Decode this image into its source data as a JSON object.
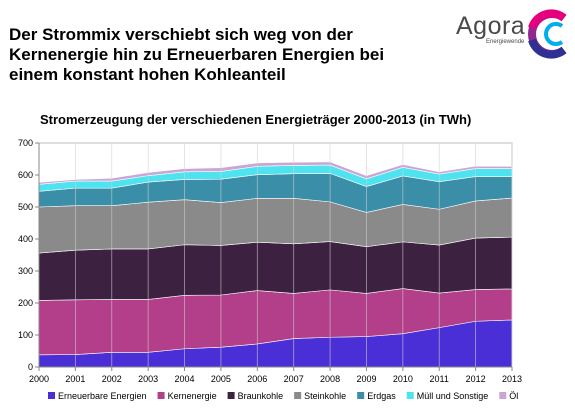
{
  "headline": {
    "line1": "Der Strommix verschiebt sich weg von der",
    "line2": "Kernenergie hin zu Erneuerbaren Energien bei",
    "line3": "einem konstant hohen Kohleanteil"
  },
  "logo": {
    "name": "Agora",
    "subtitle": "Energiewende",
    "colors": [
      "#2e3192",
      "#92278f",
      "#e6007e",
      "#00aeef"
    ]
  },
  "chart_data": {
    "type": "area",
    "stacked": true,
    "title": "Stromerzeugung der verschiedenen Energieträger 2000-2013 (in TWh)",
    "xlabel": "",
    "ylabel": "",
    "x": [
      2000,
      2001,
      2002,
      2003,
      2004,
      2005,
      2006,
      2007,
      2008,
      2009,
      2010,
      2011,
      2012,
      2013
    ],
    "x_ticks": [
      "2000",
      "2001",
      "2002",
      "2003",
      "2004",
      "2005",
      "2006",
      "2007",
      "2008",
      "2009",
      "2010",
      "2011",
      "2012",
      "2013"
    ],
    "ylim": [
      0,
      700
    ],
    "y_ticks": [
      "0",
      "100",
      "200",
      "300",
      "400",
      "500",
      "600",
      "700"
    ],
    "grid": true,
    "legend_position": "bottom",
    "series": [
      {
        "name": "Erneuerbare Energien",
        "color": "#4b2fd6",
        "values": [
          38,
          39,
          46,
          46,
          57,
          62,
          72,
          89,
          93,
          95,
          104,
          123,
          143,
          147
        ]
      },
      {
        "name": "Kernenergie",
        "color": "#b33f8b",
        "values": [
          170,
          171,
          165,
          165,
          167,
          163,
          167,
          141,
          148,
          135,
          141,
          108,
          99,
          97
        ]
      },
      {
        "name": "Braunkohle",
        "color": "#3c2140",
        "values": [
          148,
          155,
          158,
          158,
          158,
          155,
          151,
          155,
          151,
          146,
          146,
          150,
          161,
          162
        ]
      },
      {
        "name": "Steinkohle",
        "color": "#8a8a8a",
        "values": [
          144,
          139,
          135,
          146,
          141,
          134,
          137,
          142,
          124,
          107,
          117,
          112,
          116,
          122
        ]
      },
      {
        "name": "Erdgas",
        "color": "#3a8ea8",
        "values": [
          49,
          55,
          55,
          63,
          63,
          73,
          74,
          77,
          89,
          81,
          89,
          86,
          76,
          67
        ]
      },
      {
        "name": "Müll und Sonstige",
        "color": "#4fe3f0",
        "values": [
          22,
          22,
          22,
          20,
          24,
          24,
          26,
          26,
          26,
          24,
          27,
          24,
          25,
          25
        ]
      },
      {
        "name": "Öl",
        "color": "#c9a6d6",
        "values": [
          6,
          5,
          9,
          10,
          10,
          12,
          11,
          10,
          10,
          10,
          9,
          7,
          8,
          7
        ]
      }
    ]
  }
}
